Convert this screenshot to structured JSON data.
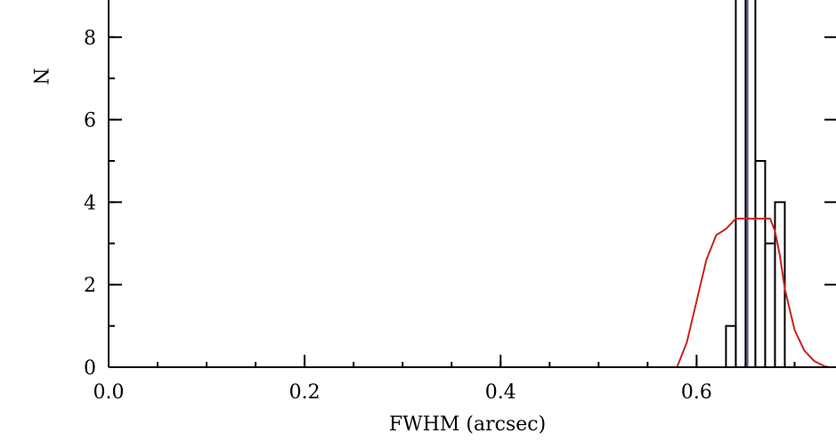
{
  "chart_data": {
    "type": "bar",
    "xlabel": "FWHM (arcsec)",
    "ylabel": "N",
    "xlim": [
      0.0,
      0.735
    ],
    "ylim": [
      0,
      8.9
    ],
    "x_ticks": [
      {
        "value": 0.0,
        "label": "0.0"
      },
      {
        "value": 0.2,
        "label": "0.2"
      },
      {
        "value": 0.4,
        "label": "0.4"
      },
      {
        "value": 0.6,
        "label": "0.6"
      }
    ],
    "y_ticks": [
      {
        "value": 0,
        "label": "0"
      },
      {
        "value": 2,
        "label": "2"
      },
      {
        "value": 4,
        "label": "4"
      },
      {
        "value": 6,
        "label": "6"
      },
      {
        "value": 8,
        "label": "8"
      }
    ],
    "x_minor_step": 0.05,
    "y_minor_step": 1,
    "histogram": {
      "bin_width": 0.01,
      "bins": [
        {
          "x0": 0.63,
          "x1": 0.64,
          "count": 1
        },
        {
          "x0": 0.64,
          "x1": 0.65,
          "count": 9
        },
        {
          "x0": 0.65,
          "x1": 0.66,
          "count": 9
        },
        {
          "x0": 0.66,
          "x1": 0.67,
          "count": 5
        },
        {
          "x0": 0.67,
          "x1": 0.68,
          "count": 3
        },
        {
          "x0": 0.68,
          "x1": 0.69,
          "count": 4
        }
      ],
      "color": "#000000"
    },
    "vertical_line": {
      "x": 0.652,
      "color": "#5a5aa0"
    },
    "curve": {
      "color": "#cc1f1f",
      "x": [
        0.0,
        0.5,
        0.58,
        0.59,
        0.6,
        0.61,
        0.62,
        0.63,
        0.64,
        0.65,
        0.66,
        0.67,
        0.675,
        0.68,
        0.685,
        0.69,
        0.7,
        0.71,
        0.72,
        0.73,
        0.735
      ],
      "y": [
        0,
        0,
        0,
        0.6,
        1.6,
        2.6,
        3.2,
        3.35,
        3.6,
        3.6,
        3.6,
        3.6,
        3.6,
        3.3,
        2.7,
        1.9,
        0.9,
        0.4,
        0.15,
        0.03,
        0
      ]
    },
    "grid": false
  }
}
